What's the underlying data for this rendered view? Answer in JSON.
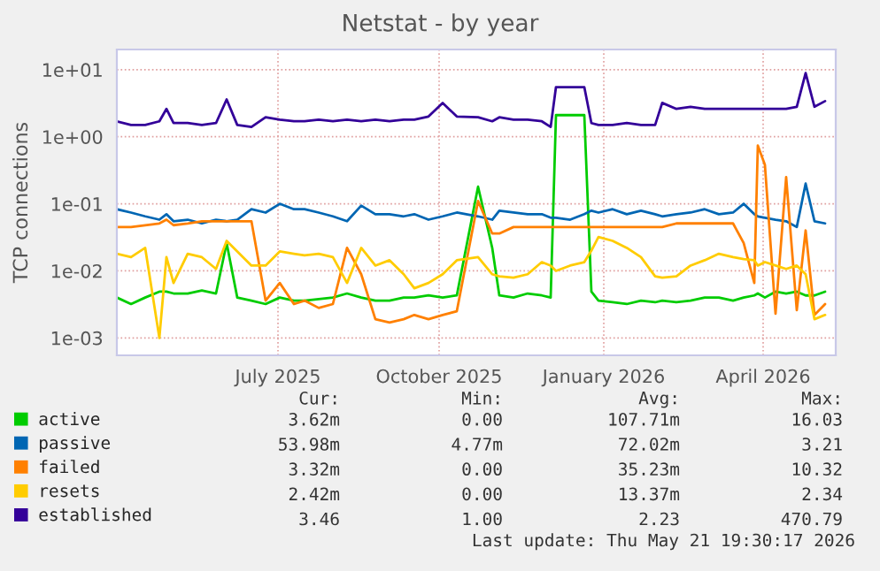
{
  "chart_data": {
    "type": "line",
    "title": "Netstat - by year",
    "ylabel": "TCP connections",
    "log": true,
    "grid": true,
    "legend": "bottom",
    "x": [
      "2025-04-16",
      "2025-04-24",
      "2025-05-02",
      "2025-05-10",
      "2025-05-14",
      "2025-05-18",
      "2025-05-26",
      "2025-06-03",
      "2025-06-11",
      "2025-06-17",
      "2025-06-23",
      "2025-07-01",
      "2025-07-09",
      "2025-07-17",
      "2025-07-25",
      "2025-07-31",
      "2025-08-08",
      "2025-08-16",
      "2025-08-24",
      "2025-09-01",
      "2025-09-09",
      "2025-09-17",
      "2025-09-25",
      "2025-10-01",
      "2025-10-09",
      "2025-10-17",
      "2025-10-25",
      "2025-11-06",
      "2025-11-14",
      "2025-11-18",
      "2025-11-26",
      "2025-12-04",
      "2025-12-12",
      "2025-12-17",
      "2025-12-20",
      "2025-12-28",
      "2026-01-05",
      "2026-01-09",
      "2026-01-13",
      "2026-01-21",
      "2026-01-29",
      "2026-02-06",
      "2026-02-14",
      "2026-02-18",
      "2026-02-26",
      "2026-03-06",
      "2026-03-14",
      "2026-03-22",
      "2026-03-30",
      "2026-04-05",
      "2026-04-11",
      "2026-04-13",
      "2026-04-17",
      "2026-04-23",
      "2026-04-29",
      "2026-05-05",
      "2026-05-10",
      "2026-05-15",
      "2026-05-21"
    ],
    "series": [
      {
        "name": "active",
        "color": "#00cc00",
        "values": [
          0.004,
          0.0032,
          0.004,
          0.0049,
          0.0049,
          0.0046,
          0.0046,
          0.0051,
          0.0046,
          0.026,
          0.004,
          0.0036,
          0.0032,
          0.004,
          0.0036,
          0.0036,
          0.0038,
          0.004,
          0.0046,
          0.004,
          0.0036,
          0.0036,
          0.004,
          0.004,
          0.0043,
          0.004,
          0.0043,
          0.18,
          0.022,
          0.0043,
          0.004,
          0.0046,
          0.0043,
          0.004,
          2.1,
          2.1,
          2.1,
          0.0049,
          0.0036,
          0.0034,
          0.0032,
          0.0036,
          0.0034,
          0.0036,
          0.0034,
          0.0036,
          0.004,
          0.004,
          0.0036,
          0.004,
          0.0043,
          0.0046,
          0.004,
          0.0049,
          0.0046,
          0.0049,
          0.0043,
          0.0043,
          0.0049
        ]
      },
      {
        "name": "passive",
        "color": "#0066b3",
        "values": [
          0.083,
          0.074,
          0.065,
          0.058,
          0.07,
          0.055,
          0.058,
          0.051,
          0.058,
          0.055,
          0.058,
          0.083,
          0.074,
          0.1,
          0.083,
          0.083,
          0.074,
          0.065,
          0.055,
          0.094,
          0.07,
          0.07,
          0.065,
          0.07,
          0.058,
          0.065,
          0.074,
          0.065,
          0.058,
          0.079,
          0.074,
          0.07,
          0.07,
          0.062,
          0.062,
          0.058,
          0.07,
          0.079,
          0.074,
          0.083,
          0.07,
          0.079,
          0.07,
          0.065,
          0.07,
          0.074,
          0.083,
          0.07,
          0.074,
          0.1,
          0.07,
          0.065,
          0.062,
          0.058,
          0.055,
          0.045,
          0.2,
          0.055,
          0.051
        ]
      },
      {
        "name": "failed",
        "color": "#ff8000",
        "values": [
          0.045,
          0.045,
          0.048,
          0.051,
          0.058,
          0.048,
          0.051,
          0.055,
          0.055,
          0.055,
          0.055,
          0.055,
          0.0036,
          0.0066,
          0.0032,
          0.0036,
          0.0028,
          0.0032,
          0.022,
          0.0089,
          0.0019,
          0.0017,
          0.0019,
          0.0022,
          0.0019,
          0.0022,
          0.0025,
          0.11,
          0.036,
          0.036,
          0.045,
          0.045,
          0.045,
          0.045,
          0.045,
          0.045,
          0.045,
          0.045,
          0.045,
          0.045,
          0.045,
          0.045,
          0.045,
          0.045,
          0.051,
          0.051,
          0.051,
          0.051,
          0.051,
          0.026,
          0.0066,
          0.74,
          0.38,
          0.0023,
          0.25,
          0.0026,
          0.04,
          0.0022,
          0.0032
        ]
      },
      {
        "name": "resets",
        "color": "#ffcc00",
        "values": [
          0.018,
          0.016,
          0.022,
          0.001,
          0.016,
          0.0066,
          0.018,
          0.016,
          0.0107,
          0.028,
          0.0195,
          0.012,
          0.012,
          0.0195,
          0.018,
          0.017,
          0.018,
          0.016,
          0.0066,
          0.022,
          0.012,
          0.0144,
          0.0089,
          0.0055,
          0.0066,
          0.0089,
          0.0144,
          0.016,
          0.0089,
          0.0083,
          0.0079,
          0.0089,
          0.0135,
          0.012,
          0.01,
          0.012,
          0.0135,
          0.02,
          0.032,
          0.028,
          0.022,
          0.016,
          0.0083,
          0.0079,
          0.0083,
          0.012,
          0.0144,
          0.018,
          0.016,
          0.015,
          0.0144,
          0.012,
          0.0135,
          0.012,
          0.0107,
          0.012,
          0.0089,
          0.0019,
          0.0022
        ]
      },
      {
        "name": "established",
        "color": "#330099",
        "values": [
          1.7,
          1.5,
          1.5,
          1.7,
          2.6,
          1.6,
          1.6,
          1.5,
          1.6,
          3.6,
          1.5,
          1.4,
          1.95,
          1.8,
          1.7,
          1.7,
          1.8,
          1.7,
          1.8,
          1.7,
          1.8,
          1.7,
          1.8,
          1.8,
          2.0,
          3.2,
          2.0,
          1.95,
          1.7,
          1.95,
          1.8,
          1.8,
          1.7,
          1.4,
          5.5,
          5.5,
          5.5,
          1.6,
          1.5,
          1.5,
          1.6,
          1.5,
          1.5,
          3.2,
          2.6,
          2.8,
          2.6,
          2.6,
          2.6,
          2.6,
          2.6,
          2.6,
          2.6,
          2.6,
          2.6,
          2.8,
          8.9,
          2.8,
          3.4
        ]
      }
    ],
    "xlim": [
      "2025-04-16",
      "2026-05-27"
    ],
    "xticks": [
      {
        "value": "2025-07-16",
        "label": "July 2025"
      },
      {
        "value": "2025-10-15",
        "label": "October 2025"
      },
      {
        "value": "2026-01-16",
        "label": "January 2026"
      },
      {
        "value": "2026-04-16",
        "label": "April 2026"
      }
    ],
    "ylim": [
      0.00055,
      20
    ],
    "yticks": [
      {
        "value": 0.001,
        "label": "1e-03"
      },
      {
        "value": 0.01,
        "label": "1e-02"
      },
      {
        "value": 0.1,
        "label": "1e-01"
      },
      {
        "value": 1,
        "label": "1e+00"
      },
      {
        "value": 10,
        "label": "1e+01"
      }
    ],
    "annotations": [
      "Cur:",
      "Min:",
      "Avg:",
      "Max:",
      "3.62m",
      "0.00",
      "107.71m",
      "16.03",
      "53.98m",
      "4.77m",
      "72.02m",
      "3.21",
      "3.32m",
      "0.00",
      "35.23m",
      "10.32",
      "2.42m",
      "0.00",
      "13.37m",
      "2.34",
      "3.46",
      "1.00",
      "2.23",
      "470.79",
      "Last update: Thu May 21 19:30:17 2026"
    ]
  }
}
